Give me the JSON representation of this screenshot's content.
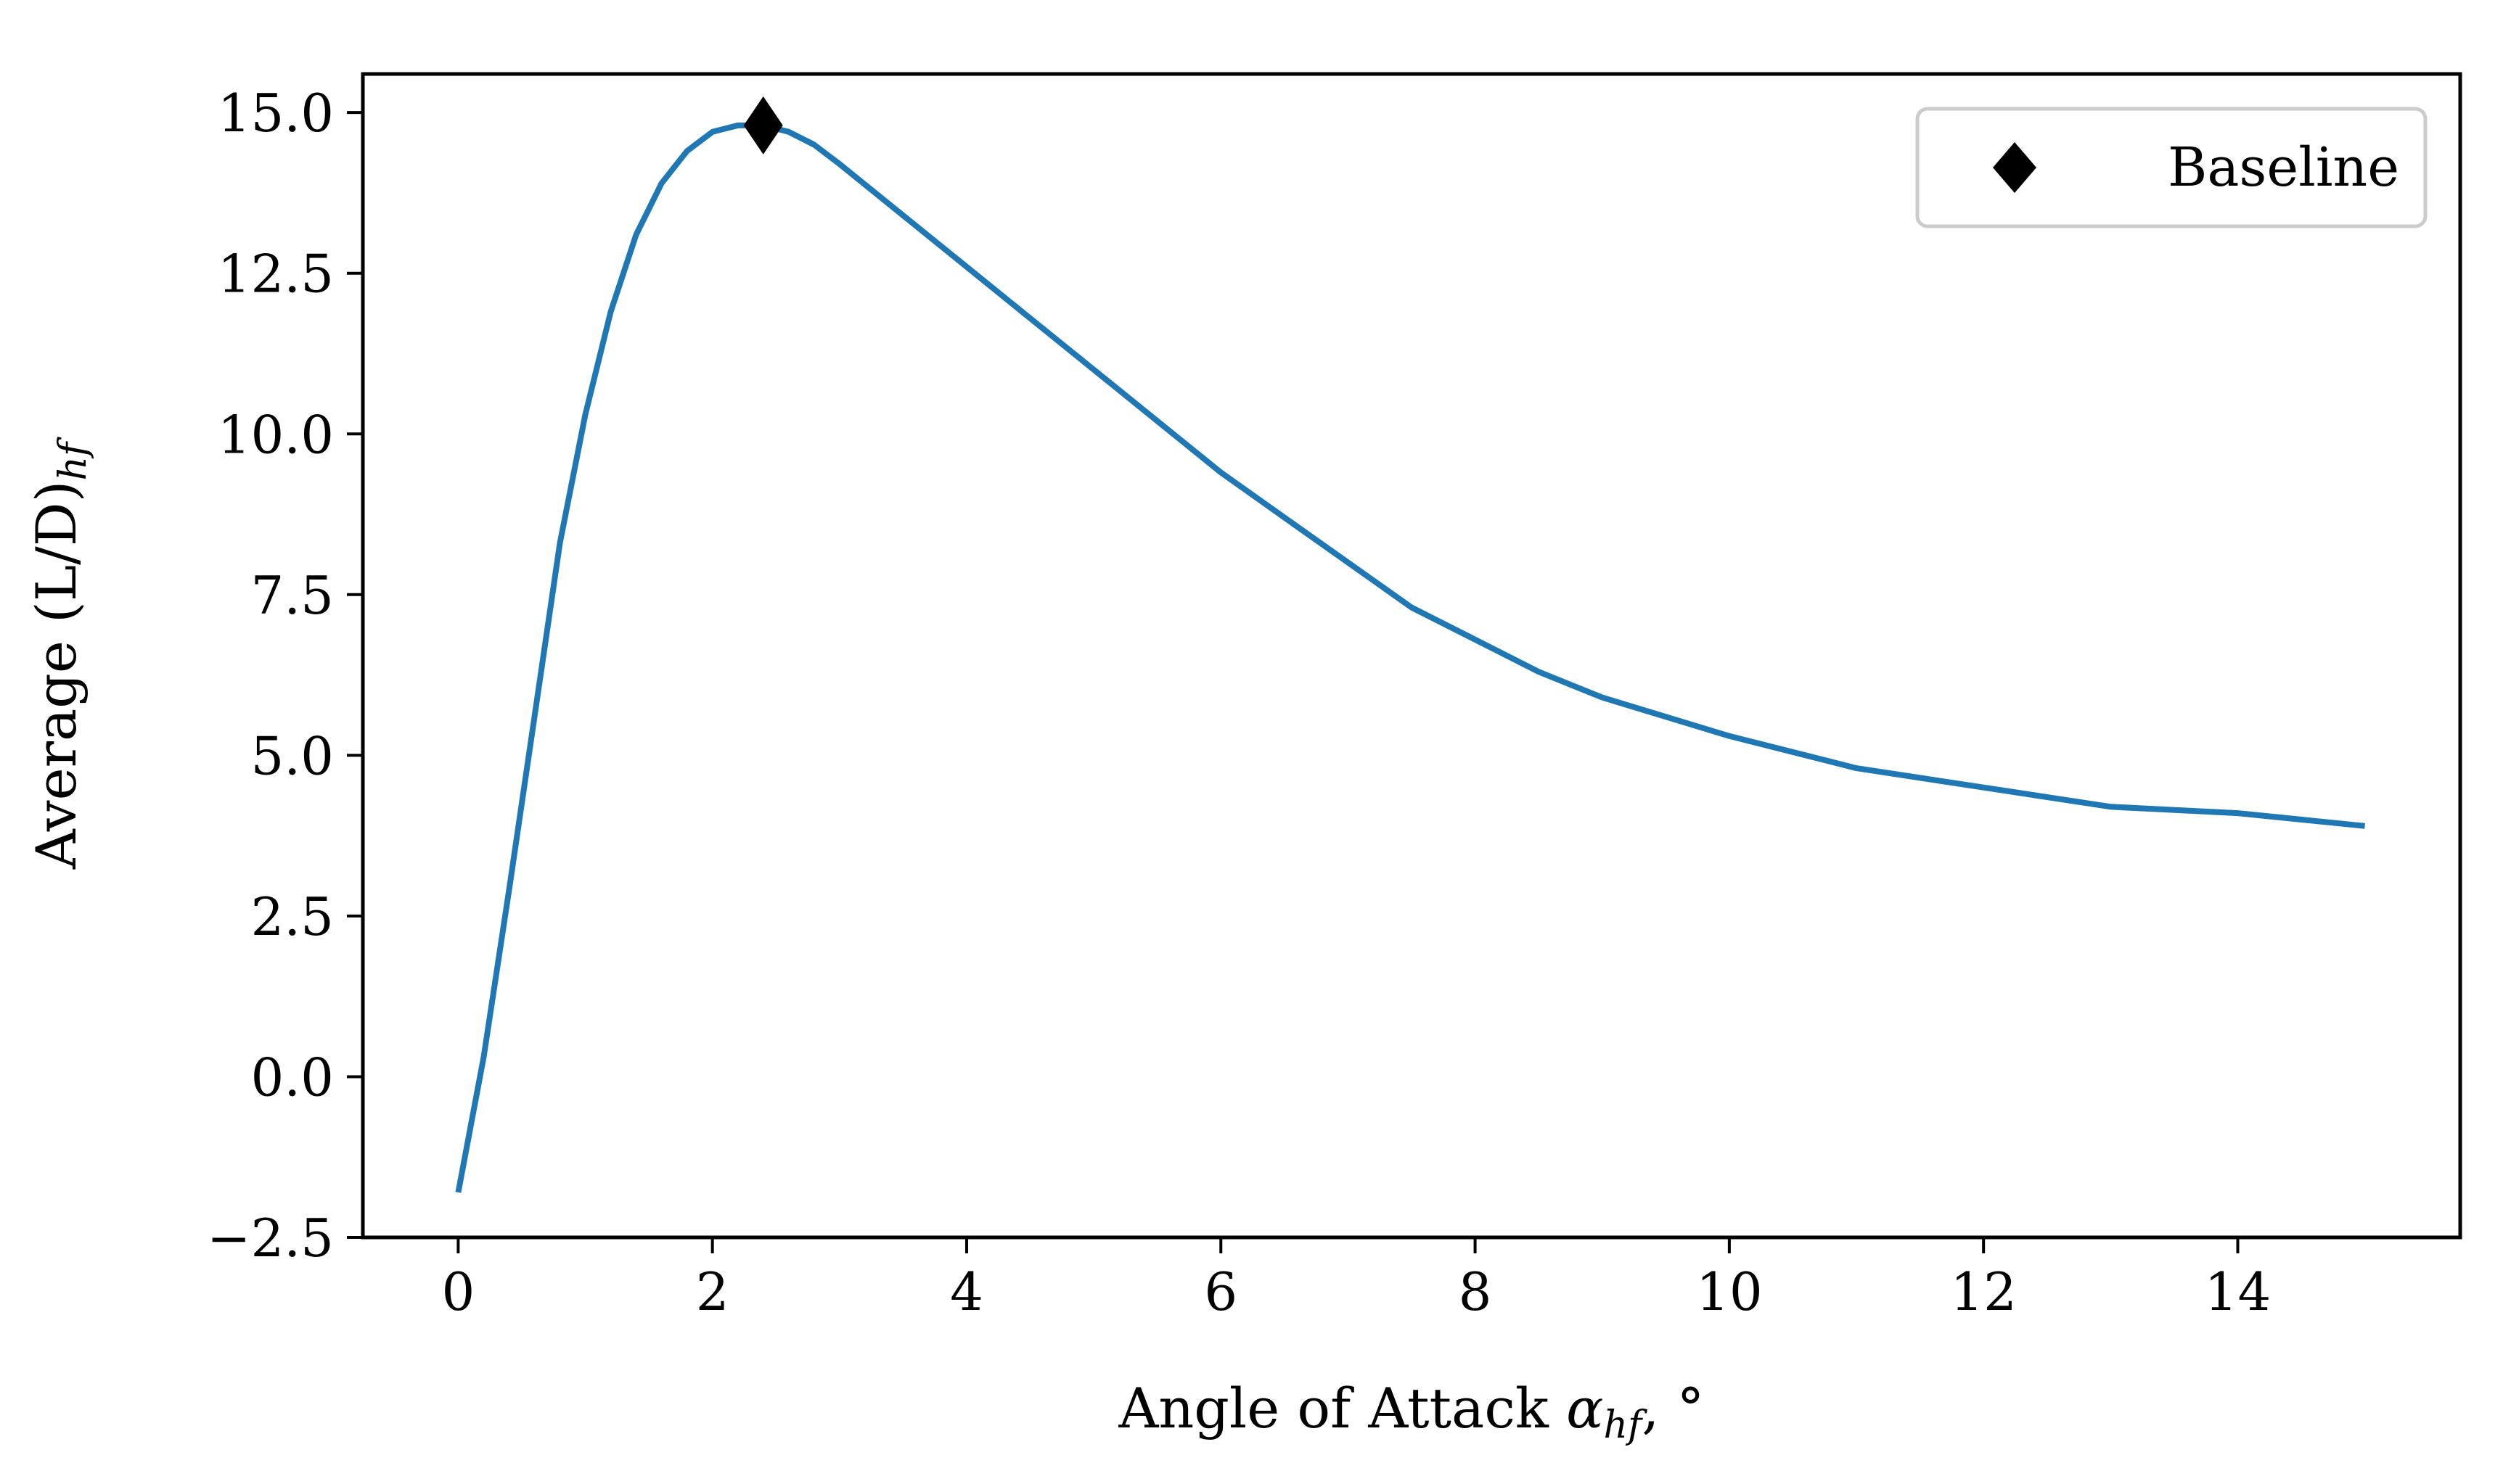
{
  "chart_data": {
    "type": "line",
    "title": "",
    "xlabel": "Angle of Attack α_hf, °",
    "xlabel_main": "Angle of Attack ",
    "xlabel_symbol": "α",
    "xlabel_sub": "hf",
    "xlabel_tail": ", °",
    "ylabel": "Average (L/D)_hf",
    "ylabel_main": "Average (L/D)",
    "ylabel_sub": "hf",
    "xlim": [
      -0.75,
      15.75
    ],
    "ylim": [
      -2.5,
      15.6
    ],
    "xticks": [
      0,
      2,
      4,
      6,
      8,
      10,
      12,
      14
    ],
    "xtick_labels": [
      "0",
      "2",
      "4",
      "6",
      "8",
      "10",
      "12",
      "14"
    ],
    "yticks": [
      -2.5,
      0.0,
      2.5,
      5.0,
      7.5,
      10.0,
      12.5,
      15.0
    ],
    "ytick_labels": [
      "−2.5",
      "0.0",
      "2.5",
      "5.0",
      "7.5",
      "10.0",
      "12.5",
      "15.0"
    ],
    "grid": false,
    "legend_position": "top-right",
    "series": [
      {
        "color": "#1f77b4",
        "x": [
          0,
          0.2,
          0.4,
          0.6,
          0.8,
          1.0,
          1.2,
          1.4,
          1.6,
          1.8,
          2.0,
          2.2,
          2.4,
          2.6,
          2.8,
          3.0,
          3.5,
          4.0,
          4.5,
          5.0,
          5.5,
          6.0,
          6.5,
          7.0,
          7.5,
          8.0,
          8.5,
          9.0,
          9.5,
          10.0,
          11.0,
          12.0,
          13.0,
          14.0,
          15.0
        ],
        "y": [
          -1.8,
          0.3,
          2.9,
          5.6,
          8.3,
          10.3,
          11.9,
          13.1,
          13.9,
          14.4,
          14.7,
          14.8,
          14.8,
          14.7,
          14.5,
          14.2,
          13.4,
          12.6,
          11.8,
          11.0,
          10.2,
          9.4,
          8.7,
          8.0,
          7.3,
          6.8,
          6.3,
          5.9,
          5.6,
          5.3,
          4.8,
          4.5,
          4.2,
          4.1,
          3.9
        ]
      },
      {
        "name": "Baseline",
        "marker": "thin_diamond",
        "color": "#000000",
        "x": [
          2.4
        ],
        "y": [
          14.8
        ]
      }
    ]
  }
}
